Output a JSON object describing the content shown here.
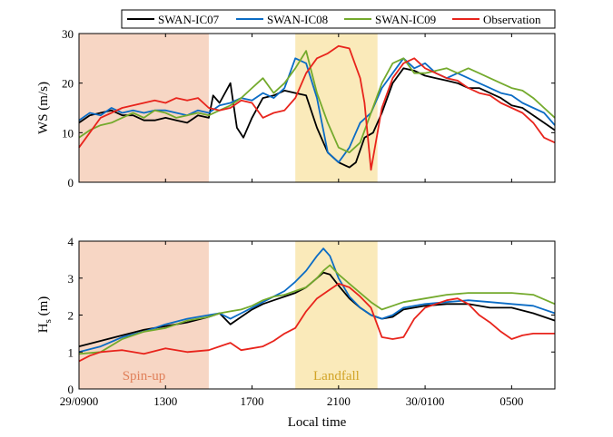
{
  "chart_data": [
    {
      "type": "line",
      "ylabel": "WS (m/s)",
      "xlim": [
        0,
        22
      ],
      "ylim": [
        0,
        30
      ],
      "yticks": [
        0,
        10,
        20,
        30
      ],
      "xticks": [
        {
          "value": 0,
          "label": "29/0900"
        },
        {
          "value": 4,
          "label": "1300"
        },
        {
          "value": 8,
          "label": "1700"
        },
        {
          "value": 12,
          "label": "2100"
        },
        {
          "value": 16,
          "label": "30/0100"
        },
        {
          "value": 20,
          "label": "0500"
        }
      ],
      "shaded_regions": [
        {
          "x": [
            0,
            6
          ],
          "color": "#f7d6c4"
        },
        {
          "x": [
            10,
            13.8
          ],
          "color": "#faeaba"
        }
      ],
      "series": [
        {
          "name": "SWAN-IC07",
          "color": "#000000",
          "x": [
            0,
            0.5,
            1,
            1.5,
            2,
            2.5,
            3,
            3.5,
            4,
            4.5,
            5,
            5.5,
            6,
            6.2,
            6.5,
            7,
            7.3,
            7.6,
            8,
            8.5,
            9,
            9.5,
            10,
            10.5,
            11,
            11.5,
            12,
            12.5,
            12.8,
            13.2,
            13.6,
            14,
            14.5,
            15,
            15.5,
            16,
            16.5,
            17,
            17.5,
            18,
            18.5,
            19,
            19.5,
            20,
            20.5,
            21,
            21.5,
            22
          ],
          "values": [
            12,
            13.5,
            14,
            14.5,
            13.5,
            13.5,
            12.5,
            12.5,
            13,
            12.5,
            12,
            13.5,
            13,
            17.5,
            16,
            20,
            11,
            9,
            13,
            17,
            17.5,
            18.5,
            18,
            17.5,
            11,
            6,
            4,
            3,
            4,
            9,
            10,
            14,
            20,
            23,
            22.5,
            21.5,
            21,
            20.5,
            20,
            19,
            19,
            18,
            17,
            15.5,
            15,
            13.5,
            12,
            10.5
          ]
        },
        {
          "name": "SWAN-IC08",
          "color": "#0b6cc5",
          "x": [
            0,
            0.5,
            1,
            1.5,
            2,
            2.5,
            3,
            3.5,
            4,
            4.5,
            5,
            5.5,
            6,
            6.5,
            7,
            7.5,
            8,
            8.5,
            9,
            9.5,
            10,
            10.5,
            11,
            11.5,
            12,
            12.5,
            13,
            13.5,
            14,
            14.5,
            15,
            15.5,
            16,
            16.5,
            17,
            17.5,
            18,
            18.5,
            19,
            19.5,
            20,
            20.5,
            21,
            21.5,
            22
          ],
          "values": [
            12.5,
            14,
            13.5,
            15,
            14,
            14.5,
            14,
            14.5,
            14.5,
            14,
            13.5,
            14.5,
            14,
            15.5,
            16,
            17,
            16.5,
            18,
            17,
            19,
            25,
            24,
            17,
            6,
            4,
            7,
            12,
            14,
            19,
            22,
            25,
            23,
            24,
            22,
            21,
            22,
            21,
            20,
            19,
            18,
            17.5,
            16,
            15,
            14,
            11.5
          ]
        },
        {
          "name": "SWAN-IC09",
          "color": "#74aa2d",
          "x": [
            0,
            0.5,
            1,
            1.5,
            2,
            2.5,
            3,
            3.5,
            4,
            4.5,
            5,
            5.5,
            6,
            6.5,
            7,
            7.5,
            8,
            8.5,
            9,
            9.5,
            10,
            10.5,
            11,
            11.5,
            12,
            12.5,
            13,
            13.5,
            14,
            14.5,
            15,
            15.5,
            16,
            16.5,
            17,
            17.5,
            18,
            18.5,
            19,
            19.5,
            20,
            20.5,
            21,
            21.5,
            22
          ],
          "values": [
            9,
            10.5,
            11.5,
            12,
            13,
            14,
            13,
            14.5,
            14,
            13,
            13.5,
            14,
            13.5,
            14.5,
            15.5,
            17,
            19,
            21,
            18,
            20,
            23,
            26.5,
            18,
            12,
            7,
            6,
            8,
            14,
            20,
            24,
            25,
            22,
            22,
            22.5,
            23,
            22,
            23,
            22,
            21,
            20,
            19,
            18.5,
            17,
            15,
            13
          ]
        },
        {
          "name": "Observation",
          "color": "#e8241c",
          "x": [
            0,
            0.5,
            1,
            1.5,
            2,
            2.5,
            3,
            3.5,
            4,
            4.5,
            5,
            5.5,
            6,
            6.5,
            7,
            7.5,
            8,
            8.5,
            9,
            9.5,
            10,
            10.5,
            11,
            11.5,
            12,
            12.5,
            13,
            13.2,
            13.5,
            14,
            14.5,
            15,
            15.5,
            16,
            16.5,
            17,
            17.5,
            18,
            18.5,
            19,
            19.5,
            20,
            20.5,
            21,
            21.5,
            22
          ],
          "values": [
            7,
            10,
            13,
            14,
            15,
            15.5,
            16,
            16.5,
            16,
            17,
            16.5,
            17,
            15,
            14.5,
            15,
            16.5,
            16,
            13,
            14,
            14.5,
            17,
            22,
            25,
            26,
            27.5,
            27,
            21,
            16,
            2.5,
            15,
            21,
            24,
            25,
            23,
            22,
            21,
            20.5,
            19,
            18,
            17.5,
            16,
            15,
            14,
            12,
            9,
            8
          ]
        }
      ]
    },
    {
      "type": "line",
      "ylabel": "Hs (m)",
      "ylabel_main": "H",
      "ylabel_sub": "s",
      "ylabel_unit": " (m)",
      "xlabel": "Local time",
      "xlim": [
        0,
        22
      ],
      "ylim": [
        0,
        4
      ],
      "yticks": [
        0,
        1,
        2,
        3,
        4
      ],
      "xticks": [
        {
          "value": 0,
          "label": "29/0900"
        },
        {
          "value": 4,
          "label": "1300"
        },
        {
          "value": 8,
          "label": "1700"
        },
        {
          "value": 12,
          "label": "2100"
        },
        {
          "value": 16,
          "label": "30/0100"
        },
        {
          "value": 20,
          "label": "0500"
        }
      ],
      "shaded_regions": [
        {
          "x": [
            0,
            6
          ],
          "color": "#f7d6c4",
          "label": "Spin-up",
          "label_color": "#e0805a"
        },
        {
          "x": [
            10,
            13.8
          ],
          "color": "#faeaba",
          "label": "Landfall",
          "label_color": "#d2a428"
        }
      ],
      "series": [
        {
          "name": "SWAN-IC07",
          "color": "#000000",
          "x": [
            0,
            1,
            2,
            3,
            4,
            5,
            6,
            6.5,
            7,
            7.5,
            8,
            8.5,
            9,
            9.5,
            10,
            10.5,
            11,
            11.3,
            11.6,
            12,
            12.5,
            13,
            13.5,
            14,
            14.5,
            15,
            16,
            17,
            18,
            19,
            20,
            21,
            22
          ],
          "values": [
            1.15,
            1.3,
            1.45,
            1.6,
            1.7,
            1.8,
            1.95,
            2.05,
            1.75,
            1.95,
            2.15,
            2.3,
            2.4,
            2.5,
            2.6,
            2.75,
            3.0,
            3.15,
            3.1,
            2.8,
            2.45,
            2.2,
            2.0,
            1.9,
            1.95,
            2.15,
            2.25,
            2.3,
            2.3,
            2.2,
            2.2,
            2.05,
            1.85
          ]
        },
        {
          "name": "SWAN-IC08",
          "color": "#0b6cc5",
          "x": [
            0,
            1,
            2,
            3,
            4,
            5,
            6,
            6.5,
            7,
            7.5,
            8,
            8.5,
            9,
            9.5,
            10,
            10.5,
            11,
            11.3,
            11.6,
            12,
            12.5,
            13,
            13.5,
            14,
            14.5,
            15,
            16,
            17,
            18,
            19,
            20,
            21,
            22
          ],
          "values": [
            1.0,
            1.15,
            1.4,
            1.55,
            1.75,
            1.9,
            2.0,
            2.05,
            1.9,
            2.05,
            2.2,
            2.35,
            2.5,
            2.65,
            2.9,
            3.2,
            3.6,
            3.8,
            3.6,
            3.0,
            2.5,
            2.2,
            2.0,
            1.9,
            2.0,
            2.2,
            2.3,
            2.35,
            2.4,
            2.35,
            2.3,
            2.25,
            2.05
          ]
        },
        {
          "name": "SWAN-IC09",
          "color": "#74aa2d",
          "x": [
            0,
            1,
            2,
            3,
            4,
            5,
            6,
            6.5,
            7,
            7.5,
            8,
            8.5,
            9,
            9.5,
            10,
            10.5,
            11,
            11.3,
            11.6,
            12,
            12.5,
            13,
            13.5,
            14,
            14.5,
            15,
            16,
            17,
            18,
            19,
            20,
            21,
            22
          ],
          "values": [
            0.95,
            1.0,
            1.35,
            1.55,
            1.65,
            1.85,
            1.95,
            2.05,
            2.1,
            2.15,
            2.25,
            2.4,
            2.5,
            2.55,
            2.65,
            2.75,
            3.0,
            3.2,
            3.35,
            3.1,
            2.85,
            2.6,
            2.35,
            2.15,
            2.25,
            2.35,
            2.45,
            2.55,
            2.6,
            2.6,
            2.6,
            2.55,
            2.3
          ]
        },
        {
          "name": "Observation",
          "color": "#e8241c",
          "x": [
            0,
            0.5,
            1,
            2,
            3,
            4,
            5,
            6,
            6.5,
            7,
            7.5,
            8,
            8.5,
            9,
            9.5,
            10,
            10.5,
            11,
            11.5,
            12,
            12.5,
            13,
            13.5,
            14,
            14.5,
            15,
            15.5,
            16,
            16.5,
            17,
            17.5,
            18,
            18.5,
            19,
            19.5,
            20,
            20.5,
            21,
            21.5,
            22
          ],
          "values": [
            0.75,
            0.9,
            1.0,
            1.05,
            0.95,
            1.1,
            1.0,
            1.05,
            1.15,
            1.25,
            1.05,
            1.1,
            1.15,
            1.3,
            1.5,
            1.65,
            2.1,
            2.45,
            2.65,
            2.85,
            2.75,
            2.5,
            2.2,
            1.4,
            1.35,
            1.4,
            1.9,
            2.2,
            2.3,
            2.4,
            2.45,
            2.3,
            2.0,
            1.8,
            1.55,
            1.35,
            1.45,
            1.5,
            1.5,
            1.5
          ]
        }
      ]
    }
  ],
  "legend": {
    "placement": "top",
    "entries": [
      "SWAN-IC07",
      "SWAN-IC08",
      "SWAN-IC09",
      "Observation"
    ]
  }
}
